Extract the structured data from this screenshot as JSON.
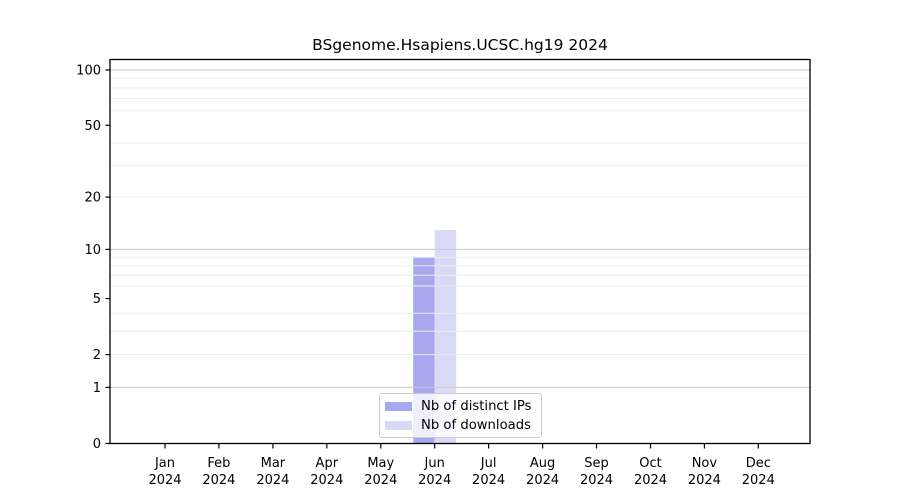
{
  "chart_data": {
    "type": "bar",
    "title": "BSgenome.Hsapiens.UCSC.hg19 2024",
    "categories": [
      "Jan",
      "Feb",
      "Mar",
      "Apr",
      "May",
      "Jun",
      "Jul",
      "Aug",
      "Sep",
      "Oct",
      "Nov",
      "Dec"
    ],
    "category_year": "2024",
    "series": [
      {
        "name": "Nb of distinct IPs",
        "color": "#a8a8ee",
        "values": [
          0,
          0,
          0,
          0,
          0,
          9,
          0,
          0,
          0,
          0,
          0,
          0
        ]
      },
      {
        "name": "Nb of downloads",
        "color": "#dadaf8",
        "values": [
          0,
          0,
          0,
          0,
          0,
          13,
          0,
          0,
          0,
          0,
          0,
          0
        ]
      }
    ],
    "y_axis": {
      "scale": "log1p",
      "ylim": [
        0,
        114
      ],
      "labeled_values": [
        0,
        1,
        2,
        5,
        10,
        20,
        50,
        100
      ],
      "major_grid_values": [
        1,
        10,
        100
      ],
      "minor_grid_values": [
        2,
        3,
        4,
        6,
        7,
        8,
        9,
        20,
        30,
        40,
        60,
        70,
        80,
        90
      ]
    },
    "xlabel": "",
    "ylabel": "",
    "grid": true,
    "legend": {
      "position": "lower center",
      "entries": [
        "Nb of distinct IPs",
        "Nb of downloads"
      ]
    },
    "colors": {
      "background": "#ffffff",
      "major_grid": "#c9c9c9",
      "minor_grid": "#ececec",
      "spine": "#000000",
      "text": "#000000"
    }
  }
}
